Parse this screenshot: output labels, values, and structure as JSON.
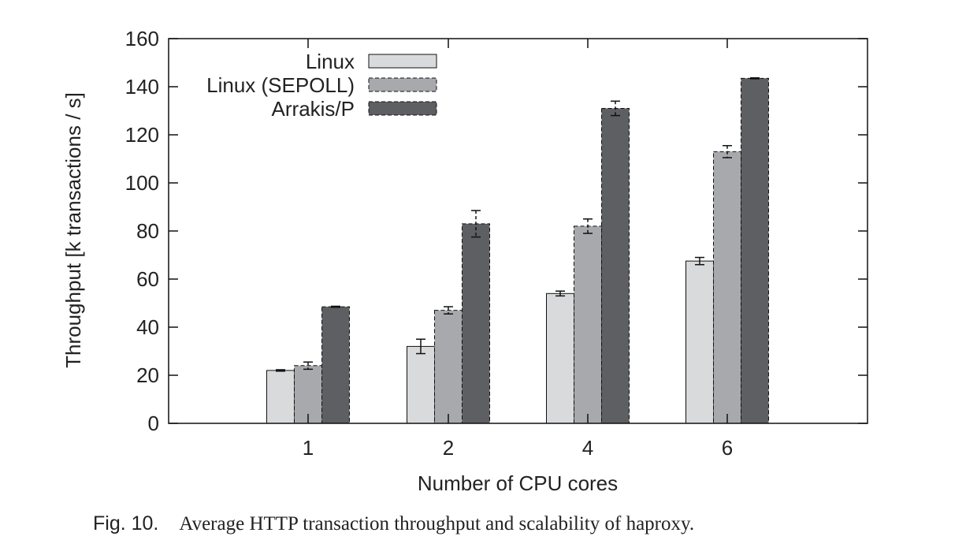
{
  "chart_data": {
    "type": "bar",
    "xlabel": "Number of CPU cores",
    "ylabel": "Throughput [k transactions / s]",
    "categories": [
      "1",
      "2",
      "4",
      "6"
    ],
    "ylim": [
      0,
      160
    ],
    "yticks": [
      "0",
      "20",
      "40",
      "60",
      "80",
      "100",
      "120",
      "140",
      "160"
    ],
    "legend_position": "top-left",
    "grid": false,
    "series": [
      {
        "name": "Linux",
        "values": [
          22,
          32,
          54,
          67.5
        ],
        "errors": [
          0.3,
          3,
          1,
          1.5
        ],
        "color": "#d9dadc",
        "stroke": "solid"
      },
      {
        "name": "Linux (SEPOLL)",
        "values": [
          24,
          47,
          82,
          113
        ],
        "errors": [
          1.5,
          1.5,
          3,
          2.5
        ],
        "color": "#a8a9ad",
        "stroke": "dashed"
      },
      {
        "name": "Arrakis/P",
        "values": [
          48.5,
          83,
          131,
          143.5
        ],
        "errors": [
          0.2,
          5.5,
          3,
          0.2
        ],
        "color": "#5e5f63",
        "stroke": "dashed"
      }
    ]
  },
  "caption": {
    "label": "Fig. 10.",
    "text": "Average HTTP transaction throughput and scalability of haproxy."
  }
}
